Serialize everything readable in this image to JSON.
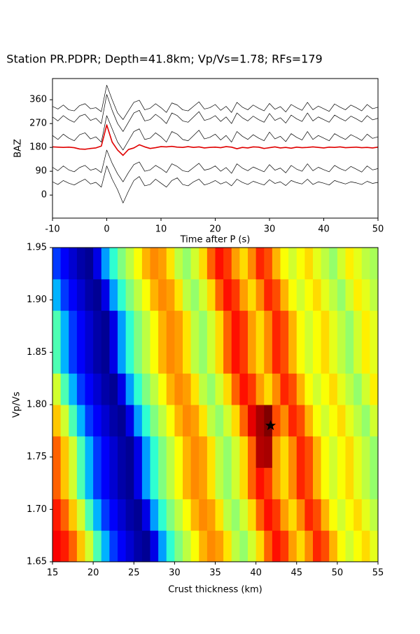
{
  "chart_data": [
    {
      "type": "line",
      "title": "Station PR.PDPR; Depth=41.8km; Vp/Vs=1.78; RFs=179",
      "xlabel": "Time after P (s)",
      "ylabel": "BAZ",
      "xlim": [
        -10,
        50
      ],
      "xticks": [
        -10,
        0,
        10,
        20,
        30,
        40,
        50
      ],
      "ylim": [
        -87,
        440
      ],
      "yticks": [
        0,
        90,
        180,
        270,
        360
      ],
      "x": [
        -10,
        -9,
        -8,
        -7,
        -6,
        -5,
        -4,
        -3,
        -2,
        -1,
        0,
        1,
        2,
        3,
        4,
        5,
        6,
        7,
        8,
        9,
        10,
        11,
        12,
        13,
        14,
        15,
        16,
        17,
        18,
        19,
        20,
        21,
        22,
        23,
        24,
        25,
        26,
        27,
        28,
        29,
        30,
        31,
        32,
        33,
        34,
        35,
        36,
        37,
        38,
        39,
        40,
        41,
        42,
        43,
        44,
        45,
        46,
        47,
        48,
        49,
        50
      ],
      "series": [
        {
          "color": "#000000",
          "values": [
            50,
            40,
            55,
            45,
            38,
            50,
            60,
            42,
            48,
            30,
            110,
            60,
            20,
            -30,
            15,
            55,
            70,
            35,
            40,
            60,
            45,
            30,
            55,
            65,
            40,
            35,
            50,
            60,
            38,
            45,
            55,
            42,
            50,
            35,
            60,
            48,
            40,
            52,
            45,
            38,
            58,
            44,
            50,
            36,
            55,
            47,
            42,
            60,
            40,
            50,
            45,
            38,
            55,
            48,
            42,
            50,
            46,
            40,
            52,
            44,
            48
          ]
        },
        {
          "color": "#000000",
          "values": [
            105,
            92,
            110,
            95,
            88,
            104,
            112,
            94,
            100,
            85,
            170,
            120,
            80,
            50,
            85,
            115,
            125,
            90,
            95,
            112,
            100,
            85,
            118,
            108,
            92,
            88,
            104,
            120,
            94,
            99,
            110,
            90,
            104,
            82,
            118,
            102,
            92,
            106,
            97,
            88,
            115,
            94,
            102,
            84,
            112,
            98,
            90,
            118,
            92,
            105,
            96,
            88,
            112,
            100,
            92,
            108,
            98,
            87,
            110,
            95,
            100
          ]
        },
        {
          "color": "#000000",
          "values": [
            225,
            210,
            230,
            215,
            205,
            228,
            235,
            212,
            220,
            200,
            300,
            250,
            200,
            170,
            205,
            240,
            250,
            210,
            215,
            235,
            220,
            200,
            240,
            230,
            210,
            205,
            225,
            245,
            212,
            218,
            230,
            208,
            225,
            200,
            240,
            222,
            210,
            228,
            215,
            205,
            238,
            212,
            222,
            202,
            232,
            218,
            208,
            240,
            210,
            225,
            215,
            205,
            232,
            220,
            210,
            228,
            218,
            206,
            230,
            214,
            220
          ]
        },
        {
          "color": "#000000",
          "values": [
            295,
            280,
            300,
            285,
            275,
            298,
            305,
            282,
            290,
            270,
            380,
            320,
            270,
            240,
            275,
            310,
            320,
            280,
            285,
            305,
            290,
            270,
            310,
            300,
            280,
            275,
            295,
            315,
            282,
            288,
            300,
            278,
            295,
            270,
            310,
            292,
            280,
            298,
            285,
            275,
            308,
            282,
            292,
            272,
            302,
            288,
            278,
            310,
            280,
            295,
            285,
            275,
            302,
            290,
            280,
            298,
            288,
            276,
            300,
            284,
            290
          ]
        },
        {
          "color": "#000000",
          "values": [
            335,
            325,
            340,
            322,
            318,
            338,
            345,
            326,
            330,
            315,
            415,
            360,
            310,
            285,
            318,
            350,
            358,
            322,
            328,
            345,
            330,
            312,
            348,
            340,
            322,
            318,
            335,
            352,
            325,
            330,
            342,
            320,
            335,
            312,
            350,
            332,
            322,
            340,
            328,
            318,
            346,
            324,
            334,
            314,
            342,
            330,
            320,
            350,
            322,
            336,
            326,
            316,
            344,
            332,
            322,
            340,
            330,
            318,
            342,
            326,
            332
          ]
        },
        {
          "color": "#e00000",
          "values": [
            182,
            181,
            180,
            181,
            179,
            174,
            173,
            176,
            178,
            185,
            265,
            200,
            170,
            150,
            172,
            178,
            190,
            182,
            176,
            179,
            183,
            182,
            184,
            181,
            180,
            183,
            180,
            182,
            178,
            180,
            181,
            179,
            183,
            181,
            175,
            180,
            178,
            182,
            181,
            176,
            179,
            182,
            178,
            180,
            177,
            181,
            179,
            180,
            182,
            180,
            178,
            181,
            180,
            182,
            179,
            180,
            181,
            179,
            180,
            178,
            181
          ]
        }
      ]
    },
    {
      "type": "heatmap",
      "xlabel": "Crust thickness (km)",
      "ylabel": "Vp/Vs",
      "xlim": [
        15,
        55
      ],
      "xticks": [
        15,
        20,
        25,
        30,
        35,
        40,
        45,
        50,
        55
      ],
      "ylim": [
        1.65,
        1.95
      ],
      "yticks": [
        1.65,
        {
          "value": 1.7,
          "label": "1.70"
        },
        1.75,
        {
          "value": 1.8,
          "label": "1.80"
        },
        1.85,
        {
          "value": 1.9,
          "label": "1.90"
        },
        1.95
      ],
      "colormap": "jet",
      "zlim": [
        0,
        100
      ],
      "x_edges": [
        15,
        16,
        17,
        18,
        19,
        20,
        21,
        22,
        23,
        24,
        25,
        26,
        27,
        28,
        29,
        30,
        31,
        32,
        33,
        34,
        35,
        36,
        37,
        38,
        39,
        40,
        41,
        42,
        43,
        44,
        45,
        46,
        47,
        48,
        49,
        50,
        51,
        52,
        53,
        54,
        55
      ],
      "y_edges": [
        1.65,
        1.68,
        1.71,
        1.74,
        1.77,
        1.8,
        1.83,
        1.86,
        1.89,
        1.92,
        1.95
      ],
      "z": [
        [
          88,
          85,
          78,
          68,
          58,
          45,
          30,
          18,
          12,
          8,
          4,
          2,
          10,
          28,
          42,
          50,
          56,
          62,
          70,
          74,
          72,
          65,
          56,
          52,
          58,
          66,
          78,
          86,
          82,
          72,
          66,
          74,
          84,
          80,
          70,
          62,
          58,
          62,
          66,
          60
        ],
        [
          85,
          78,
          68,
          58,
          45,
          30,
          18,
          12,
          8,
          4,
          2,
          10,
          28,
          42,
          50,
          56,
          62,
          70,
          74,
          72,
          65,
          56,
          52,
          58,
          66,
          78,
          86,
          82,
          72,
          66,
          74,
          84,
          80,
          70,
          62,
          58,
          62,
          66,
          60,
          56
        ],
        [
          78,
          68,
          58,
          45,
          30,
          18,
          12,
          8,
          4,
          2,
          10,
          28,
          42,
          50,
          56,
          62,
          70,
          74,
          72,
          65,
          56,
          52,
          58,
          66,
          78,
          86,
          82,
          72,
          66,
          74,
          84,
          80,
          70,
          62,
          58,
          62,
          66,
          60,
          56,
          52
        ],
        [
          78,
          68,
          58,
          45,
          30,
          18,
          12,
          8,
          4,
          2,
          10,
          28,
          42,
          50,
          56,
          62,
          70,
          74,
          72,
          65,
          56,
          52,
          58,
          66,
          78,
          95,
          96,
          72,
          66,
          74,
          84,
          80,
          70,
          62,
          58,
          62,
          66,
          60,
          56,
          52
        ],
        [
          68,
          58,
          45,
          30,
          18,
          12,
          8,
          4,
          2,
          10,
          28,
          42,
          50,
          56,
          62,
          70,
          74,
          72,
          65,
          56,
          52,
          58,
          66,
          78,
          90,
          96,
          100,
          80,
          74,
          84,
          80,
          70,
          62,
          58,
          62,
          66,
          60,
          56,
          52,
          58
        ],
        [
          58,
          45,
          30,
          18,
          12,
          8,
          4,
          2,
          10,
          28,
          42,
          50,
          56,
          62,
          70,
          74,
          72,
          65,
          56,
          52,
          58,
          66,
          78,
          86,
          82,
          72,
          66,
          74,
          84,
          80,
          70,
          62,
          58,
          62,
          66,
          60,
          56,
          52,
          58,
          64
        ],
        [
          45,
          30,
          18,
          12,
          8,
          4,
          2,
          10,
          28,
          42,
          50,
          56,
          62,
          70,
          74,
          72,
          65,
          56,
          52,
          58,
          66,
          78,
          86,
          82,
          72,
          66,
          74,
          84,
          80,
          70,
          62,
          58,
          62,
          66,
          60,
          56,
          52,
          58,
          64,
          60
        ],
        [
          45,
          30,
          18,
          12,
          8,
          4,
          2,
          10,
          28,
          42,
          50,
          56,
          62,
          70,
          74,
          72,
          65,
          56,
          52,
          58,
          66,
          78,
          86,
          82,
          72,
          66,
          74,
          84,
          80,
          70,
          62,
          58,
          62,
          66,
          60,
          56,
          52,
          58,
          64,
          60
        ],
        [
          30,
          18,
          12,
          8,
          4,
          2,
          10,
          28,
          42,
          50,
          56,
          62,
          70,
          74,
          72,
          65,
          56,
          52,
          58,
          66,
          78,
          86,
          82,
          72,
          66,
          74,
          84,
          80,
          70,
          62,
          58,
          62,
          66,
          60,
          56,
          52,
          58,
          64,
          60,
          56
        ],
        [
          18,
          12,
          8,
          4,
          2,
          10,
          28,
          42,
          50,
          56,
          62,
          70,
          74,
          72,
          65,
          56,
          52,
          58,
          66,
          78,
          86,
          82,
          72,
          66,
          74,
          84,
          80,
          70,
          62,
          58,
          62,
          66,
          60,
          56,
          52,
          58,
          64,
          60,
          56,
          54
        ]
      ],
      "marker": {
        "x": 41.8,
        "y": 1.78,
        "color": "#000000"
      }
    }
  ]
}
